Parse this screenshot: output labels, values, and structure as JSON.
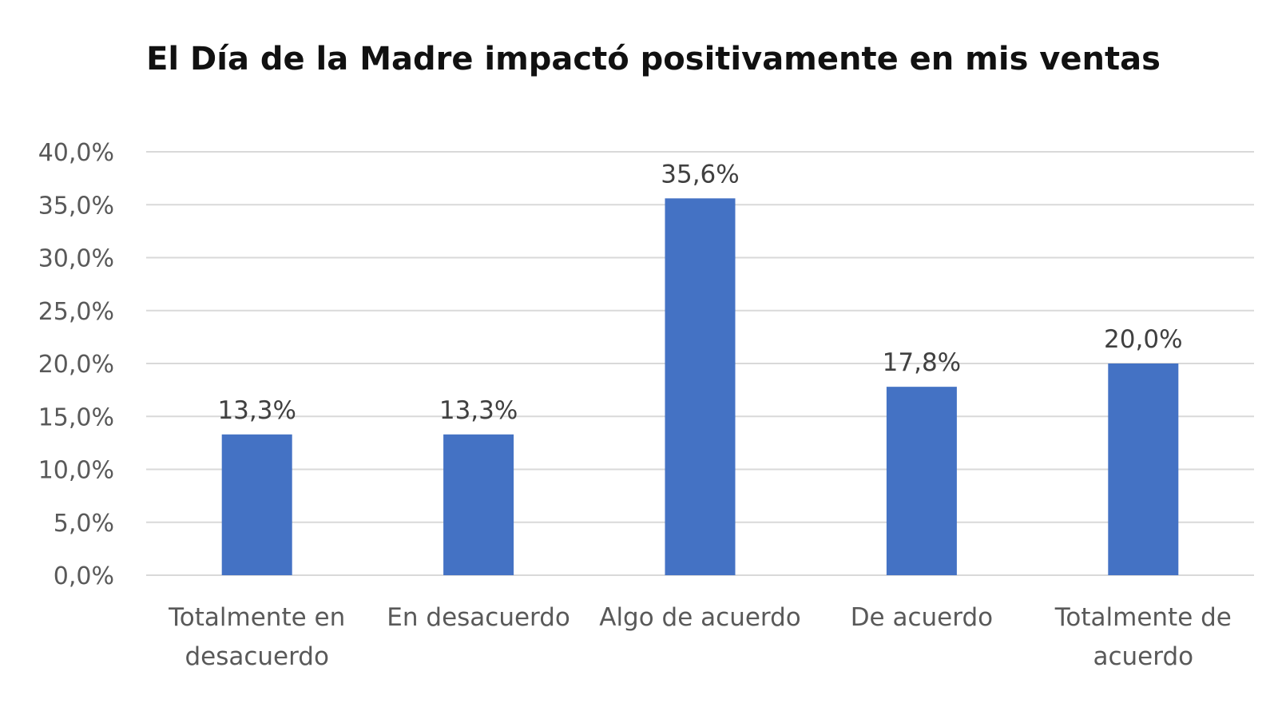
{
  "chart_data": {
    "type": "bar",
    "title": "El Día de la Madre impactó positivamente en mis ventas",
    "xlabel": "",
    "ylabel": "",
    "categories": [
      [
        "Totalmente en",
        "desacuerdo"
      ],
      [
        "En desacuerdo"
      ],
      [
        "Algo de acuerdo"
      ],
      [
        "De acuerdo"
      ],
      [
        "Totalmente de",
        "acuerdo"
      ]
    ],
    "values": [
      13.3,
      13.3,
      35.6,
      17.8,
      20.0
    ],
    "value_labels": [
      "13,3%",
      "13,3%",
      "35,6%",
      "17,8%",
      "20,0%"
    ],
    "ylim": [
      0,
      40
    ],
    "yticks": [
      0,
      5,
      10,
      15,
      20,
      25,
      30,
      35,
      40
    ],
    "ytick_labels": [
      "0,0%",
      "5,0%",
      "10,0%",
      "15,0%",
      "20,0%",
      "25,0%",
      "30,0%",
      "35,0%",
      "40,0%"
    ],
    "grid": true,
    "legend": "none",
    "bar_color": "#4472c4",
    "grid_color": "#d9d9d9"
  }
}
